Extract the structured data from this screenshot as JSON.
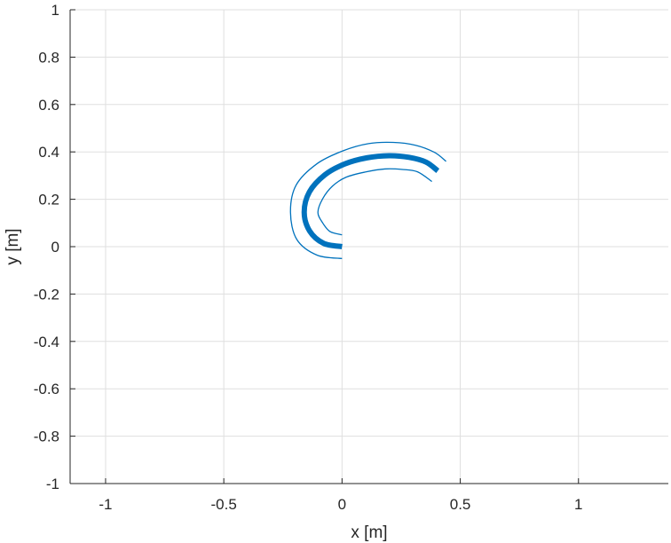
{
  "chart_data": {
    "type": "line",
    "title": "",
    "xlabel": "x [m]",
    "ylabel": "y [m]",
    "xlim": [
      -1.15,
      1.38
    ],
    "ylim": [
      -1,
      1
    ],
    "xticks": [
      -1,
      -0.5,
      0,
      0.5,
      1
    ],
    "xtick_labels": [
      "-1",
      "-0.5",
      "0",
      "0.5",
      "1"
    ],
    "yticks": [
      -1,
      -0.8,
      -0.6,
      -0.4,
      -0.2,
      0,
      0.2,
      0.4,
      0.6,
      0.8,
      1
    ],
    "ytick_labels": [
      "-1",
      "-0.8",
      "-0.6",
      "-0.4",
      "-0.2",
      "0",
      "0.2",
      "0.4",
      "0.6",
      "0.8",
      "1"
    ],
    "grid": true,
    "line_color": "#0072BD",
    "series": [
      {
        "role": "centerline",
        "x": [
          0,
          -0.078,
          -0.137,
          -0.16,
          -0.138,
          -0.073,
          0.011,
          0.105,
          0.199,
          0.283,
          0.355,
          0.405
        ],
        "y": [
          0,
          0.014,
          0.066,
          0.145,
          0.231,
          0.303,
          0.349,
          0.375,
          0.384,
          0.377,
          0.357,
          0.32
        ]
      },
      {
        "role": "outer-boundary",
        "x": [
          0,
          -0.105,
          -0.191,
          -0.218,
          -0.194,
          -0.106,
          0.005,
          0.112,
          0.217,
          0.311,
          0.391,
          0.44
        ],
        "y": [
          -0.05,
          -0.036,
          0.03,
          0.145,
          0.26,
          0.35,
          0.405,
          0.435,
          0.44,
          0.428,
          0.398,
          0.36
        ]
      },
      {
        "role": "inner-boundary",
        "x": [
          0,
          -0.051,
          -0.083,
          -0.102,
          -0.082,
          -0.04,
          0.017,
          0.098,
          0.181,
          0.255,
          0.319,
          0.38
        ],
        "y": [
          0.05,
          0.064,
          0.102,
          0.145,
          0.202,
          0.256,
          0.293,
          0.315,
          0.328,
          0.326,
          0.316,
          0.275
        ]
      }
    ]
  }
}
